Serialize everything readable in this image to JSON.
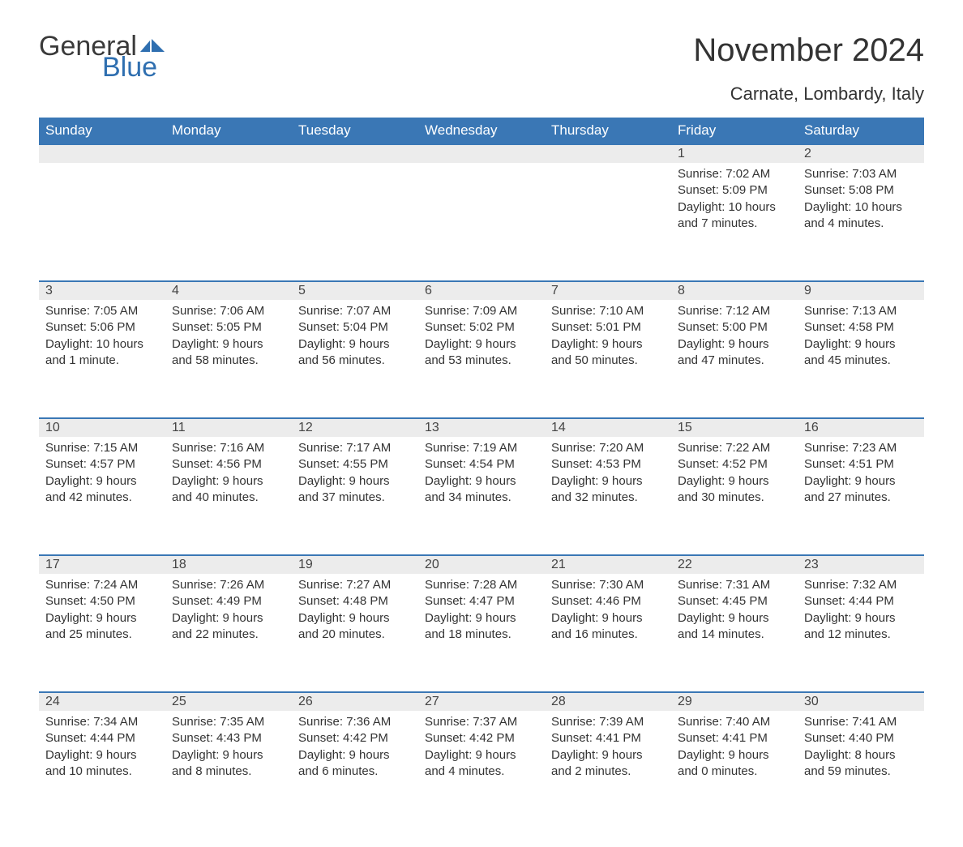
{
  "logo": {
    "general": "General",
    "blue": "Blue",
    "flag_color": "#2f6fb0"
  },
  "title": "November 2024",
  "location": "Carnate, Lombardy, Italy",
  "colors": {
    "header_bg": "#3a77b5",
    "header_text": "#ffffff",
    "daynum_bg": "#ececec",
    "border": "#3a77b5",
    "body_text": "#333333"
  },
  "day_headers": [
    "Sunday",
    "Monday",
    "Tuesday",
    "Wednesday",
    "Thursday",
    "Friday",
    "Saturday"
  ],
  "weeks": [
    [
      null,
      null,
      null,
      null,
      null,
      {
        "n": "1",
        "sunrise": "7:02 AM",
        "sunset": "5:09 PM",
        "day_h": "10",
        "day_m": "7",
        "unit": "minutes"
      },
      {
        "n": "2",
        "sunrise": "7:03 AM",
        "sunset": "5:08 PM",
        "day_h": "10",
        "day_m": "4",
        "unit": "minutes"
      }
    ],
    [
      {
        "n": "3",
        "sunrise": "7:05 AM",
        "sunset": "5:06 PM",
        "day_h": "10",
        "day_m": "1",
        "unit": "minute"
      },
      {
        "n": "4",
        "sunrise": "7:06 AM",
        "sunset": "5:05 PM",
        "day_h": "9",
        "day_m": "58",
        "unit": "minutes"
      },
      {
        "n": "5",
        "sunrise": "7:07 AM",
        "sunset": "5:04 PM",
        "day_h": "9",
        "day_m": "56",
        "unit": "minutes"
      },
      {
        "n": "6",
        "sunrise": "7:09 AM",
        "sunset": "5:02 PM",
        "day_h": "9",
        "day_m": "53",
        "unit": "minutes"
      },
      {
        "n": "7",
        "sunrise": "7:10 AM",
        "sunset": "5:01 PM",
        "day_h": "9",
        "day_m": "50",
        "unit": "minutes"
      },
      {
        "n": "8",
        "sunrise": "7:12 AM",
        "sunset": "5:00 PM",
        "day_h": "9",
        "day_m": "47",
        "unit": "minutes"
      },
      {
        "n": "9",
        "sunrise": "7:13 AM",
        "sunset": "4:58 PM",
        "day_h": "9",
        "day_m": "45",
        "unit": "minutes"
      }
    ],
    [
      {
        "n": "10",
        "sunrise": "7:15 AM",
        "sunset": "4:57 PM",
        "day_h": "9",
        "day_m": "42",
        "unit": "minutes"
      },
      {
        "n": "11",
        "sunrise": "7:16 AM",
        "sunset": "4:56 PM",
        "day_h": "9",
        "day_m": "40",
        "unit": "minutes"
      },
      {
        "n": "12",
        "sunrise": "7:17 AM",
        "sunset": "4:55 PM",
        "day_h": "9",
        "day_m": "37",
        "unit": "minutes"
      },
      {
        "n": "13",
        "sunrise": "7:19 AM",
        "sunset": "4:54 PM",
        "day_h": "9",
        "day_m": "34",
        "unit": "minutes"
      },
      {
        "n": "14",
        "sunrise": "7:20 AM",
        "sunset": "4:53 PM",
        "day_h": "9",
        "day_m": "32",
        "unit": "minutes"
      },
      {
        "n": "15",
        "sunrise": "7:22 AM",
        "sunset": "4:52 PM",
        "day_h": "9",
        "day_m": "30",
        "unit": "minutes"
      },
      {
        "n": "16",
        "sunrise": "7:23 AM",
        "sunset": "4:51 PM",
        "day_h": "9",
        "day_m": "27",
        "unit": "minutes"
      }
    ],
    [
      {
        "n": "17",
        "sunrise": "7:24 AM",
        "sunset": "4:50 PM",
        "day_h": "9",
        "day_m": "25",
        "unit": "minutes"
      },
      {
        "n": "18",
        "sunrise": "7:26 AM",
        "sunset": "4:49 PM",
        "day_h": "9",
        "day_m": "22",
        "unit": "minutes"
      },
      {
        "n": "19",
        "sunrise": "7:27 AM",
        "sunset": "4:48 PM",
        "day_h": "9",
        "day_m": "20",
        "unit": "minutes"
      },
      {
        "n": "20",
        "sunrise": "7:28 AM",
        "sunset": "4:47 PM",
        "day_h": "9",
        "day_m": "18",
        "unit": "minutes"
      },
      {
        "n": "21",
        "sunrise": "7:30 AM",
        "sunset": "4:46 PM",
        "day_h": "9",
        "day_m": "16",
        "unit": "minutes"
      },
      {
        "n": "22",
        "sunrise": "7:31 AM",
        "sunset": "4:45 PM",
        "day_h": "9",
        "day_m": "14",
        "unit": "minutes"
      },
      {
        "n": "23",
        "sunrise": "7:32 AM",
        "sunset": "4:44 PM",
        "day_h": "9",
        "day_m": "12",
        "unit": "minutes"
      }
    ],
    [
      {
        "n": "24",
        "sunrise": "7:34 AM",
        "sunset": "4:44 PM",
        "day_h": "9",
        "day_m": "10",
        "unit": "minutes"
      },
      {
        "n": "25",
        "sunrise": "7:35 AM",
        "sunset": "4:43 PM",
        "day_h": "9",
        "day_m": "8",
        "unit": "minutes"
      },
      {
        "n": "26",
        "sunrise": "7:36 AM",
        "sunset": "4:42 PM",
        "day_h": "9",
        "day_m": "6",
        "unit": "minutes"
      },
      {
        "n": "27",
        "sunrise": "7:37 AM",
        "sunset": "4:42 PM",
        "day_h": "9",
        "day_m": "4",
        "unit": "minutes"
      },
      {
        "n": "28",
        "sunrise": "7:39 AM",
        "sunset": "4:41 PM",
        "day_h": "9",
        "day_m": "2",
        "unit": "minutes"
      },
      {
        "n": "29",
        "sunrise": "7:40 AM",
        "sunset": "4:41 PM",
        "day_h": "9",
        "day_m": "0",
        "unit": "minutes"
      },
      {
        "n": "30",
        "sunrise": "7:41 AM",
        "sunset": "4:40 PM",
        "day_h": "8",
        "day_m": "59",
        "unit": "minutes"
      }
    ]
  ],
  "labels": {
    "sunrise": "Sunrise:",
    "sunset": "Sunset:",
    "daylight": "Daylight:",
    "hours": "hours",
    "and": "and"
  }
}
